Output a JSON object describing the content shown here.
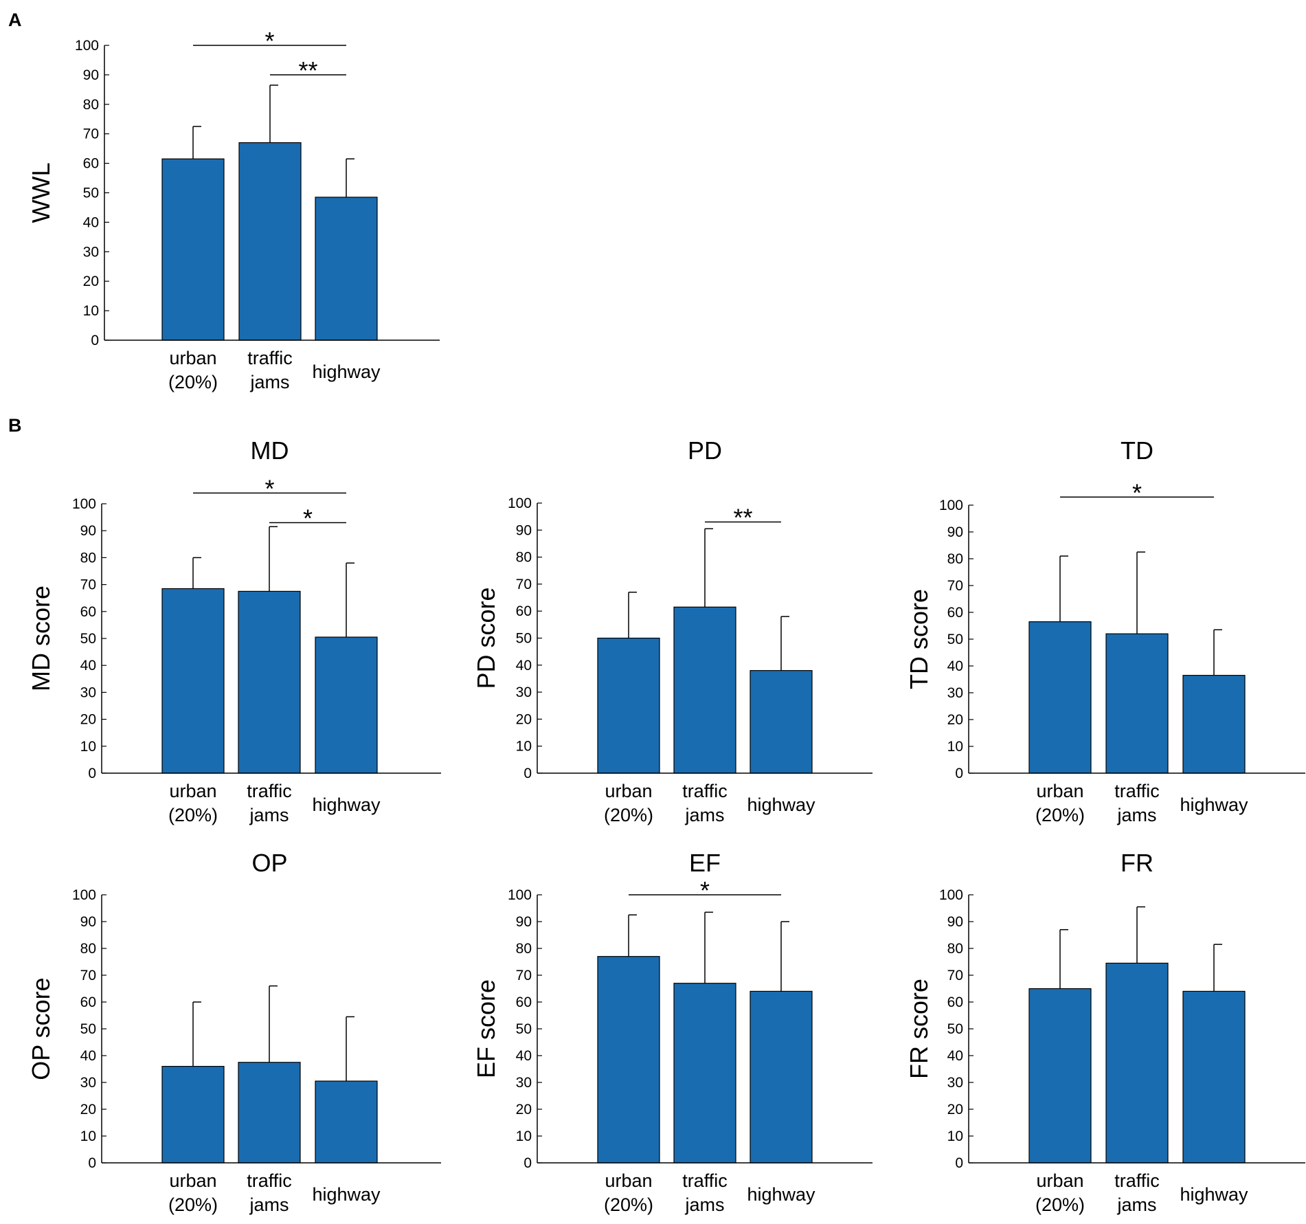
{
  "figure": {
    "panel_labels": [
      "A",
      "B"
    ]
  },
  "colors": {
    "bar": "#1a6cb0",
    "axis": "#000000"
  },
  "chart_data": [
    {
      "id": "wwl",
      "type": "bar",
      "panel": "A",
      "title": "",
      "ylabel": "WWL",
      "categories": [
        [
          "urban",
          "(20%)"
        ],
        [
          "traffic",
          "jams"
        ],
        [
          "highway"
        ]
      ],
      "values": [
        61.5,
        67,
        48.5
      ],
      "errors": [
        11,
        19.5,
        13
      ],
      "ylim": [
        0,
        100
      ],
      "yticks": [
        0,
        10,
        20,
        30,
        40,
        50,
        60,
        70,
        80,
        90,
        100
      ],
      "significance": [
        {
          "from": 0,
          "to": 2,
          "label": "*",
          "level": 100
        },
        {
          "from": 1,
          "to": 2,
          "label": "**",
          "level": 90
        }
      ]
    },
    {
      "id": "md",
      "type": "bar",
      "panel": "B",
      "title": "MD",
      "ylabel": "MD score",
      "categories": [
        [
          "urban",
          "(20%)"
        ],
        [
          "traffic",
          "jams"
        ],
        [
          "highway"
        ]
      ],
      "values": [
        68.5,
        67.5,
        50.5
      ],
      "errors": [
        11.5,
        24,
        27.5
      ],
      "ylim": [
        0,
        100
      ],
      "yticks": [
        0,
        10,
        20,
        30,
        40,
        50,
        60,
        70,
        80,
        90,
        100
      ],
      "significance": [
        {
          "from": 0,
          "to": 2,
          "label": "*",
          "level": 104
        },
        {
          "from": 1,
          "to": 2,
          "label": "*",
          "level": 93
        }
      ]
    },
    {
      "id": "pd",
      "type": "bar",
      "panel": "B",
      "title": "PD",
      "ylabel": "PD score",
      "categories": [
        [
          "urban",
          "(20%)"
        ],
        [
          "traffic",
          "jams"
        ],
        [
          "highway"
        ]
      ],
      "values": [
        50,
        61.5,
        38
      ],
      "errors": [
        17,
        29,
        20
      ],
      "ylim": [
        0,
        100
      ],
      "yticks": [
        0,
        10,
        20,
        30,
        40,
        50,
        60,
        70,
        80,
        90,
        100
      ],
      "significance": [
        {
          "from": 1,
          "to": 2,
          "label": "**",
          "level": 93
        }
      ]
    },
    {
      "id": "td",
      "type": "bar",
      "panel": "B",
      "title": "TD",
      "ylabel": "TD score",
      "categories": [
        [
          "urban",
          "(20%)"
        ],
        [
          "traffic",
          "jams"
        ],
        [
          "highway"
        ]
      ],
      "values": [
        56.5,
        52,
        36.5
      ],
      "errors": [
        24.5,
        30.5,
        17
      ],
      "ylim": [
        0,
        100
      ],
      "yticks": [
        0,
        10,
        20,
        30,
        40,
        50,
        60,
        70,
        80,
        90,
        100
      ],
      "significance": [
        {
          "from": 0,
          "to": 2,
          "label": "*",
          "level": 103
        }
      ]
    },
    {
      "id": "op",
      "type": "bar",
      "panel": "B",
      "title": "OP",
      "ylabel": "OP score",
      "categories": [
        [
          "urban",
          "(20%)"
        ],
        [
          "traffic",
          "jams"
        ],
        [
          "highway"
        ]
      ],
      "values": [
        36,
        37.5,
        30.5
      ],
      "errors": [
        24,
        28.5,
        24
      ],
      "ylim": [
        0,
        100
      ],
      "yticks": [
        0,
        10,
        20,
        30,
        40,
        50,
        60,
        70,
        80,
        90,
        100
      ],
      "significance": []
    },
    {
      "id": "ef",
      "type": "bar",
      "panel": "B",
      "title": "EF",
      "ylabel": "EF score",
      "categories": [
        [
          "urban",
          "(20%)"
        ],
        [
          "traffic",
          "jams"
        ],
        [
          "highway"
        ]
      ],
      "values": [
        77,
        67,
        64
      ],
      "errors": [
        15.5,
        26.5,
        26
      ],
      "ylim": [
        0,
        100
      ],
      "yticks": [
        0,
        10,
        20,
        30,
        40,
        50,
        60,
        70,
        80,
        90,
        100
      ],
      "significance": [
        {
          "from": 0,
          "to": 2,
          "label": "*",
          "level": 100
        }
      ]
    },
    {
      "id": "fr",
      "type": "bar",
      "panel": "B",
      "title": "FR",
      "ylabel": "FR score",
      "categories": [
        [
          "urban",
          "(20%)"
        ],
        [
          "traffic",
          "jams"
        ],
        [
          "highway"
        ]
      ],
      "values": [
        65,
        74.5,
        64
      ],
      "errors": [
        22,
        21,
        17.5
      ],
      "ylim": [
        0,
        100
      ],
      "yticks": [
        0,
        10,
        20,
        30,
        40,
        50,
        60,
        70,
        80,
        90,
        100
      ],
      "significance": []
    }
  ]
}
